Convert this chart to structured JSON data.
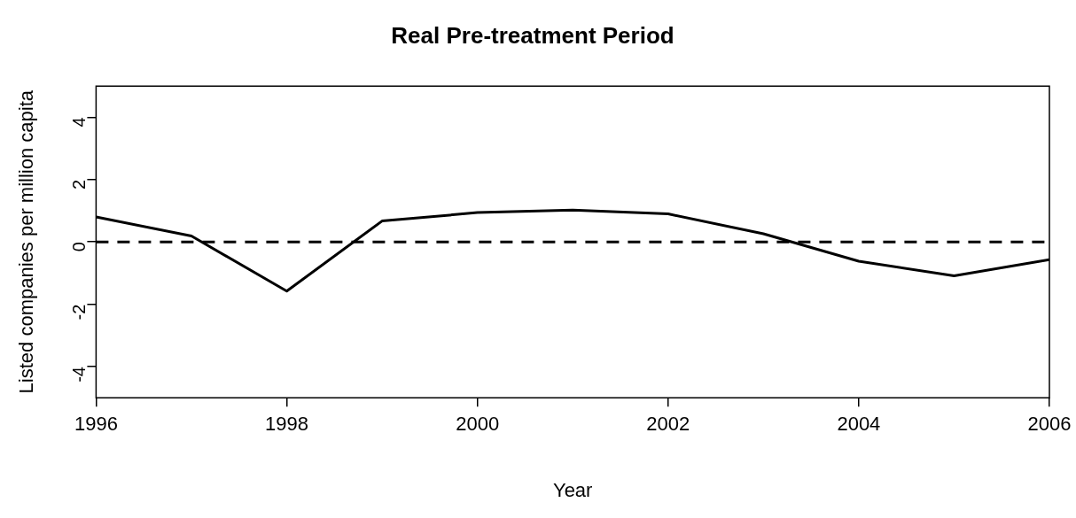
{
  "chart_data": {
    "type": "line",
    "title": "Real Pre-treatment Period",
    "xlabel": "Year",
    "ylabel": "Listed companies per million capita",
    "x": [
      1996,
      1997,
      1998,
      1999,
      2000,
      2001,
      2002,
      2003,
      2004,
      2005,
      2006
    ],
    "series": [
      {
        "color": "#000000",
        "values": [
          0.8,
          0.19,
          -1.58,
          0.67,
          0.94,
          1.02,
          0.9,
          0.26,
          -0.62,
          -1.09,
          -0.57
        ]
      }
    ],
    "xlim": [
      1996,
      2006
    ],
    "xticks": [
      1996,
      1998,
      2000,
      2002,
      2004,
      2006
    ],
    "ylim": [
      -5,
      5
    ],
    "yticks": [
      -4,
      -2,
      0,
      2,
      4
    ],
    "ref_lines": [
      {
        "axis": "y",
        "value": 0,
        "color": "#000000",
        "line_style": "dashed"
      }
    ],
    "grid": false,
    "legend": false,
    "marker": "none",
    "line_style": "solid"
  }
}
